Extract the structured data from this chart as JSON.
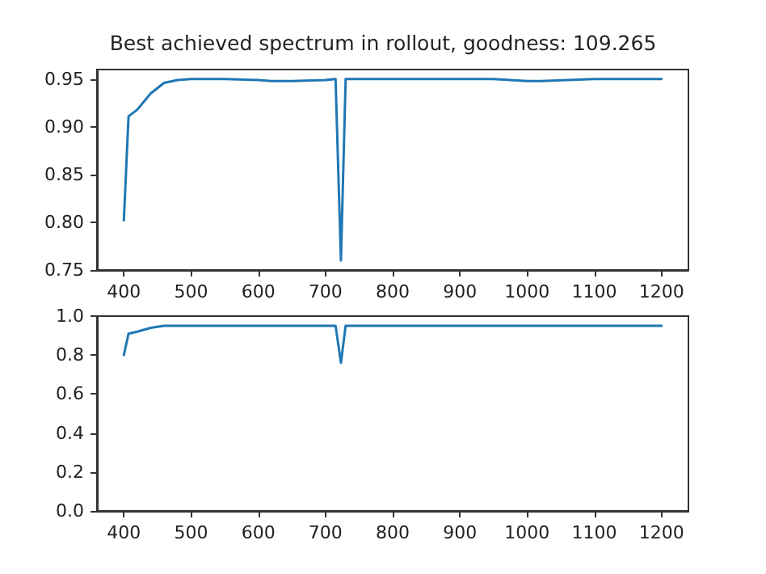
{
  "chart_data": [
    {
      "type": "line",
      "title": "Best achieved spectrum in rollout, goodness: 109.265",
      "x": [
        400,
        407,
        420,
        440,
        460,
        480,
        500,
        550,
        600,
        620,
        650,
        700,
        715,
        723,
        730,
        800,
        900,
        950,
        1000,
        1020,
        1100,
        1200
      ],
      "series": [
        {
          "color": "#1f77b4",
          "values": [
            0.802,
            0.911,
            0.918,
            0.935,
            0.946,
            0.949,
            0.95,
            0.95,
            0.949,
            0.948,
            0.948,
            0.949,
            0.95,
            0.76,
            0.95,
            0.95,
            0.95,
            0.95,
            0.948,
            0.948,
            0.95,
            0.95
          ]
        }
      ],
      "xlim": [
        360,
        1240
      ],
      "xticks": [
        400,
        500,
        600,
        700,
        800,
        900,
        1000,
        1100,
        1200
      ],
      "ylim": [
        0.75,
        0.96
      ],
      "yticks": [
        {
          "value": 0.75,
          "label": "0.75"
        },
        {
          "value": 0.8,
          "label": "0.80"
        },
        {
          "value": 0.85,
          "label": "0.85"
        },
        {
          "value": 0.9,
          "label": "0.90"
        },
        {
          "value": 0.95,
          "label": "0.95"
        }
      ],
      "grid": false,
      "marker": "none",
      "line_style": "solid"
    },
    {
      "type": "line",
      "x": [
        400,
        407,
        420,
        440,
        460,
        480,
        500,
        550,
        600,
        620,
        650,
        700,
        715,
        723,
        730,
        800,
        900,
        950,
        1000,
        1020,
        1100,
        1200
      ],
      "series": [
        {
          "color": "#1f77b4",
          "values": [
            0.8,
            0.91,
            0.92,
            0.94,
            0.95,
            0.95,
            0.95,
            0.95,
            0.95,
            0.95,
            0.95,
            0.95,
            0.95,
            0.76,
            0.95,
            0.95,
            0.95,
            0.95,
            0.95,
            0.95,
            0.95,
            0.95
          ]
        }
      ],
      "xlim": [
        360,
        1240
      ],
      "xticks": [
        400,
        500,
        600,
        700,
        800,
        900,
        1000,
        1100,
        1200
      ],
      "ylim": [
        0,
        1
      ],
      "yticks": [
        {
          "value": 0,
          "label": "0.0"
        },
        {
          "value": 0.2,
          "label": "0.2"
        },
        {
          "value": 0.4,
          "label": "0.4"
        },
        {
          "value": 0.6,
          "label": "0.6"
        },
        {
          "value": 0.8,
          "label": "0.8"
        },
        {
          "value": 1,
          "label": "1.0"
        }
      ],
      "grid": false,
      "marker": "none",
      "line_style": "solid"
    }
  ]
}
